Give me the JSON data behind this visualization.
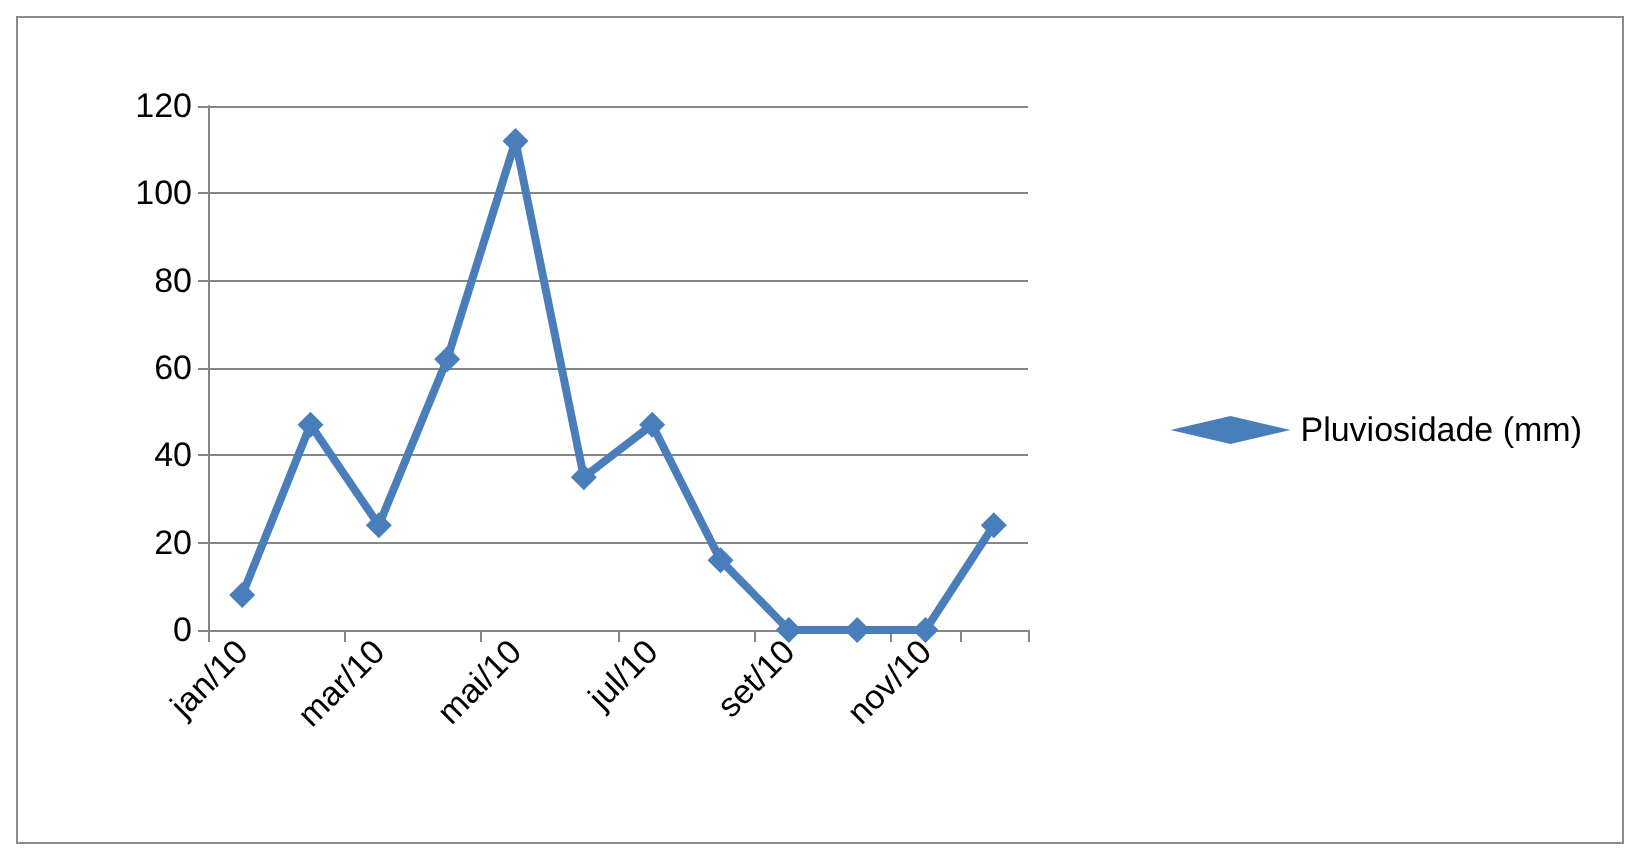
{
  "chart_data": {
    "type": "line",
    "categories": [
      "jan/10",
      null,
      "mar/10",
      null,
      "mai/10",
      null,
      "jul/10",
      null,
      "set/10",
      null,
      "nov/10",
      null
    ],
    "series": [
      {
        "name": "Pluviosidade (mm)",
        "color": "#4a7ebb",
        "values": [
          8,
          47,
          24,
          62,
          112,
          35,
          47,
          16,
          0,
          0,
          0,
          24
        ]
      }
    ],
    "ylim": [
      0,
      120
    ],
    "yticks": [
      0,
      20,
      40,
      60,
      80,
      100,
      120
    ],
    "grid": "y",
    "legend": "right",
    "marker": "diamond",
    "line_style": "solid"
  }
}
